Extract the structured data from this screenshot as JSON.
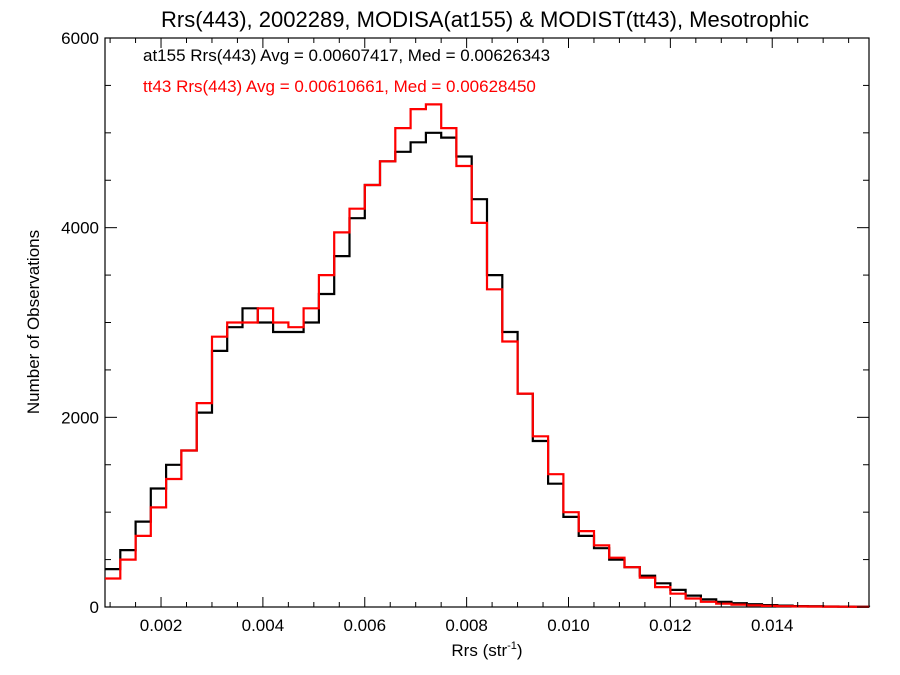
{
  "chart_data": {
    "type": "line",
    "title": "Rrs(443), 2002289, MODISA(at155) & MODIST(tt43), Mesotrophic",
    "xlabel_main": "Rrs (str",
    "xlabel_sup": "-1",
    "xlabel_close": ")",
    "ylabel": "Number of Observations",
    "xlim": [
      0.0009,
      0.0159
    ],
    "ylim": [
      0,
      6000
    ],
    "x_ticks": [
      0.002,
      0.004,
      0.006,
      0.008,
      0.01,
      0.012,
      0.014
    ],
    "x_tick_labels": [
      "0.002",
      "0.004",
      "0.006",
      "0.008",
      "0.010",
      "0.012",
      "0.014"
    ],
    "y_ticks": [
      0,
      2000,
      4000,
      6000
    ],
    "y_tick_labels": [
      "0",
      "2000",
      "4000",
      "6000"
    ],
    "grid": false,
    "annotations": [
      {
        "text": "at155 Rrs(443) Avg = 0.00607417, Med = 0.00626343",
        "color": "#000000"
      },
      {
        "text": "tt43 Rrs(443) Avg = 0.00610661, Med = 0.00628450",
        "color": "#ff0000"
      }
    ],
    "series": [
      {
        "color": "#000000",
        "x": [
          0.0009,
          0.0012,
          0.0015,
          0.0018,
          0.0021,
          0.0024,
          0.0027,
          0.003,
          0.0033,
          0.0036,
          0.0039,
          0.0042,
          0.0045,
          0.0048,
          0.0051,
          0.0054,
          0.0057,
          0.006,
          0.0063,
          0.0066,
          0.0069,
          0.0072,
          0.0075,
          0.0078,
          0.0081,
          0.0084,
          0.0087,
          0.009,
          0.0093,
          0.0096,
          0.0099,
          0.0102,
          0.0105,
          0.0108,
          0.0111,
          0.0114,
          0.0117,
          0.012,
          0.0123,
          0.0126,
          0.0129,
          0.0132,
          0.0135,
          0.0138,
          0.0141,
          0.0144,
          0.0147,
          0.015,
          0.0153,
          0.0156,
          0.0159
        ],
        "y": [
          400,
          600,
          900,
          1250,
          1500,
          1650,
          2050,
          2700,
          2950,
          3150,
          3000,
          2900,
          2900,
          3000,
          3300,
          3700,
          4100,
          4450,
          4700,
          4800,
          4900,
          5000,
          4950,
          4750,
          4300,
          3500,
          2900,
          2250,
          1750,
          1300,
          950,
          750,
          620,
          500,
          420,
          330,
          250,
          180,
          120,
          80,
          55,
          40,
          30,
          20,
          15,
          10,
          8,
          5,
          4,
          3,
          2
        ]
      },
      {
        "color": "#ff0000",
        "x": [
          0.0009,
          0.0012,
          0.0015,
          0.0018,
          0.0021,
          0.0024,
          0.0027,
          0.003,
          0.0033,
          0.0036,
          0.0039,
          0.0042,
          0.0045,
          0.0048,
          0.0051,
          0.0054,
          0.0057,
          0.006,
          0.0063,
          0.0066,
          0.0069,
          0.0072,
          0.0075,
          0.0078,
          0.0081,
          0.0084,
          0.0087,
          0.009,
          0.0093,
          0.0096,
          0.0099,
          0.0102,
          0.0105,
          0.0108,
          0.0111,
          0.0114,
          0.0117,
          0.012,
          0.0123,
          0.0126,
          0.0129,
          0.0132,
          0.0135,
          0.0138,
          0.0141,
          0.0144,
          0.0147,
          0.015,
          0.0153,
          0.0156,
          0.0159
        ],
        "y": [
          300,
          500,
          750,
          1050,
          1350,
          1650,
          2150,
          2850,
          3000,
          3000,
          3150,
          3000,
          2950,
          3150,
          3500,
          3950,
          4200,
          4450,
          4700,
          5050,
          5250,
          5300,
          5050,
          4650,
          4050,
          3350,
          2800,
          2250,
          1800,
          1400,
          1000,
          800,
          650,
          520,
          420,
          310,
          210,
          140,
          90,
          55,
          35,
          25,
          18,
          12,
          8,
          6,
          5,
          4,
          3,
          2,
          2
        ]
      }
    ]
  }
}
